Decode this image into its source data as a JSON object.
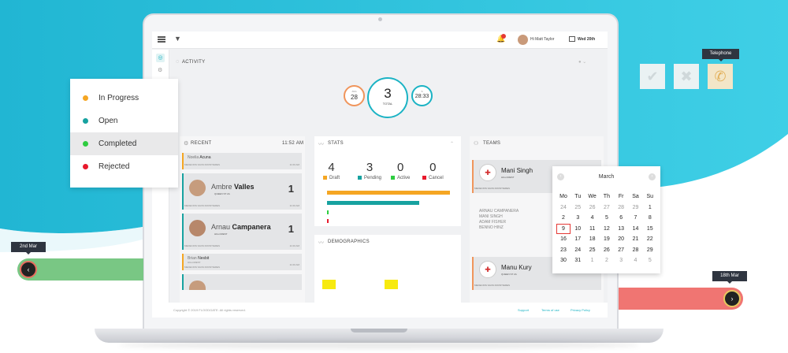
{
  "colors": {
    "accent": "#1bb3c4",
    "in_progress": "#f5a623",
    "open": "#17a2a0",
    "completed": "#2ecc40",
    "rejected": "#e8192c",
    "green_bar": "#79c784",
    "red_bar": "#f07572"
  },
  "legend": {
    "items": [
      {
        "label": "In Progress",
        "color": "#f5a623"
      },
      {
        "label": "Open",
        "color": "#17a2a0"
      },
      {
        "label": "Completed",
        "color": "#2ecc40"
      },
      {
        "label": "Rejected",
        "color": "#e8192c"
      }
    ],
    "selected": "Completed"
  },
  "status_icons": [
    {
      "name": "check-icon",
      "glyph": "✔"
    },
    {
      "name": "cross-icon",
      "glyph": "✖"
    },
    {
      "name": "telephone-icon",
      "glyph": "✆"
    }
  ],
  "tooltips": {
    "telephone": "Telephone",
    "start_date": "2nd Mar",
    "end_date": "18th Mar"
  },
  "topbar": {
    "user": "Hi Matt Taylor",
    "date": "Wed 20th"
  },
  "activity": {
    "title": "ACTIVITY",
    "left_label": "AVG",
    "left_value": "28",
    "total_value": "3",
    "total_label": "TOTAL",
    "right_label": "S",
    "right_value": "28:33"
  },
  "recent": {
    "title": "RECENT",
    "time": "11:52 AM",
    "items": [
      {
        "first": "Noelia",
        "last": "Acuna",
        "org": "MEDECINS SANS FRONTIERES",
        "time": "11:00 AM"
      },
      {
        "first": "Ambre",
        "last": "Valles",
        "sub": "QUEEN ST 2A",
        "org": "MEDECINS SANS FRONTIERES",
        "time": "11:00 AM",
        "count": "1"
      },
      {
        "first": "Arnau",
        "last": "Campanera",
        "sub": "HILLCREST",
        "org": "MEDECINS SANS FRONTIERES",
        "time": "11:00 AM",
        "count": "1"
      },
      {
        "first": "Brian",
        "last": "Nesbit",
        "sub": "HILLCREST",
        "org": "MEDECINS SANS FRONTIERES",
        "time": "11:00 AM"
      }
    ]
  },
  "stats": {
    "title": "STATS",
    "items": [
      {
        "value": "4",
        "label": "Draft",
        "color": "#f5a623"
      },
      {
        "value": "3",
        "label": "Pending",
        "color": "#17a2a0"
      },
      {
        "value": "0",
        "label": "Active",
        "color": "#2ecc40"
      },
      {
        "value": "0",
        "label": "Cancel",
        "color": "#e8192c"
      }
    ],
    "bars": [
      4,
      3,
      0,
      0
    ]
  },
  "demographics": {
    "title": "DEMOGRAPHICS"
  },
  "teams": {
    "title": "TEAMS",
    "cards": [
      {
        "name": "Mani Singh",
        "sub": "HILLCREST",
        "org": "MEDECINS SANS FRONTIERES"
      },
      {
        "name": "Manu Kury",
        "sub": "QUEEN ST 2A",
        "org": "MEDECINS SANS FRONTIERES"
      }
    ],
    "members": [
      "ARNAU CAMPANERA",
      "MANI SINGH",
      "ADAM FISHER",
      "BENNO HINZ"
    ]
  },
  "calendar": {
    "month": "March",
    "weekdays": [
      "Mo",
      "Tu",
      "We",
      "Th",
      "Fr",
      "Sa",
      "Su"
    ],
    "weeks": [
      [
        "24",
        "25",
        "26",
        "27",
        "28",
        "29",
        "1"
      ],
      [
        "2",
        "3",
        "4",
        "5",
        "6",
        "7",
        "8"
      ],
      [
        "9",
        "10",
        "11",
        "12",
        "13",
        "14",
        "15"
      ],
      [
        "16",
        "17",
        "18",
        "19",
        "20",
        "21",
        "22"
      ],
      [
        "23",
        "24",
        "25",
        "26",
        "27",
        "28",
        "29"
      ],
      [
        "30",
        "31",
        "1",
        "2",
        "3",
        "4",
        "5"
      ]
    ],
    "selected": "9"
  },
  "footer": {
    "copyright": "Copyright © 2019 FLOODGATE. All rights reserved.",
    "links": [
      "Support",
      "Terms of use",
      "Privacy Policy"
    ]
  }
}
